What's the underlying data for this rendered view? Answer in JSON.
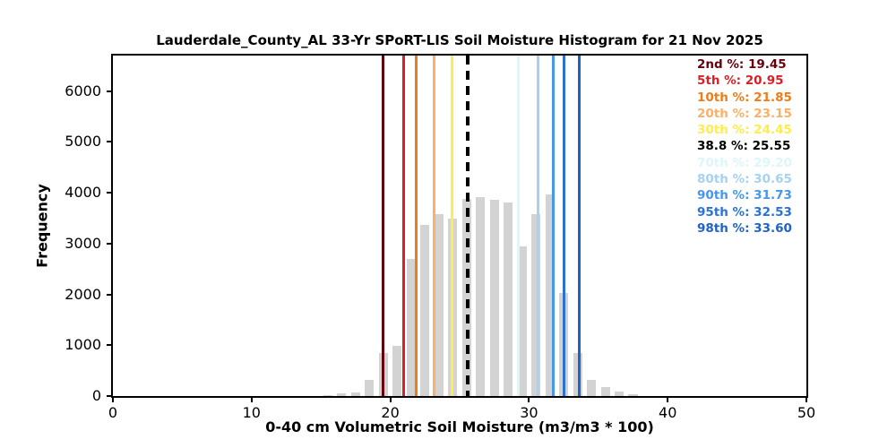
{
  "chart_data": {
    "type": "bar",
    "title": "Lauderdale_County_AL 33-Yr SPoRT-LIS Soil Moisture Histogram for 21 Nov 2025",
    "xlabel": "0-40 cm Volumetric Soil Moisture (m3/m3 * 100)",
    "ylabel": "Frequency",
    "xlim": [
      0,
      50
    ],
    "ylim": [
      0,
      6700
    ],
    "x_ticks": [
      0,
      10,
      20,
      30,
      40,
      50
    ],
    "y_ticks": [
      0,
      1000,
      2000,
      3000,
      4000,
      5000,
      6000
    ],
    "grid": false,
    "legend_position": "top-right",
    "bar_color": "#d3d3d3",
    "bin_width": 1,
    "bar_rwidth": 0.65,
    "bin_left_edges": [
      15,
      16,
      17,
      18,
      19,
      20,
      21,
      22,
      23,
      24,
      25,
      26,
      27,
      28,
      29,
      30,
      31,
      32,
      33,
      34,
      35,
      36,
      37
    ],
    "frequencies": [
      20,
      45,
      62,
      320,
      840,
      990,
      2700,
      3370,
      3580,
      3500,
      3880,
      3910,
      3855,
      3815,
      2950,
      3580,
      3970,
      2030,
      845,
      320,
      175,
      90,
      30
    ],
    "percentiles": [
      {
        "label": "2nd %",
        "value": 19.45,
        "display": "19.45",
        "color": "#67000d",
        "style": "solid"
      },
      {
        "label": "5th %",
        "value": 20.95,
        "display": "20.95",
        "color": "#dc1f24",
        "style": "solid"
      },
      {
        "label": "10th %",
        "value": 21.85,
        "display": "21.85",
        "color": "#ef7c1a",
        "style": "solid"
      },
      {
        "label": "20th %",
        "value": 23.15,
        "display": "23.15",
        "color": "#fbb066",
        "style": "solid"
      },
      {
        "label": "30th %",
        "value": 24.45,
        "display": "24.45",
        "color": "#ffec4d",
        "style": "solid"
      },
      {
        "label": "38.8 %",
        "value": 25.55,
        "display": "25.55",
        "color": "#000000",
        "style": "dashed"
      },
      {
        "label": "70th %",
        "value": 29.2,
        "display": "29.20",
        "color": "#dcf6fc",
        "style": "solid"
      },
      {
        "label": "80th %",
        "value": 30.65,
        "display": "30.65",
        "color": "#a5d2f3",
        "style": "solid"
      },
      {
        "label": "90th %",
        "value": 31.73,
        "display": "31.73",
        "color": "#4796ec",
        "style": "solid"
      },
      {
        "label": "95th %",
        "value": 32.53,
        "display": "32.53",
        "color": "#2b71d8",
        "style": "solid"
      },
      {
        "label": "98th %",
        "value": 33.6,
        "display": "33.60",
        "color": "#2063c6",
        "style": "solid"
      }
    ]
  }
}
